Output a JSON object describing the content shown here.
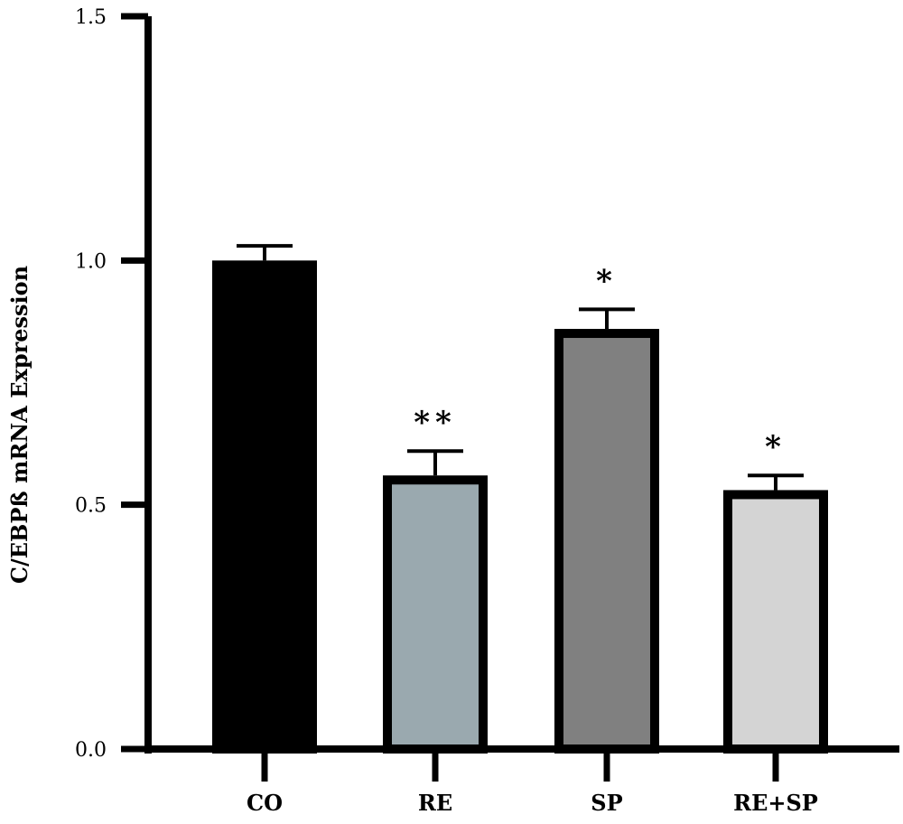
{
  "chart_data": {
    "type": "bar",
    "ylabel": "C/EBPß mRNA Expression",
    "ylim": [
      0,
      1.5
    ],
    "yticks": [
      "0.0",
      "0.5",
      "1.0",
      "1.5"
    ],
    "categories": [
      "CO",
      "RE",
      "SP",
      "RE+SP"
    ],
    "values": [
      1.0,
      0.56,
      0.86,
      0.53
    ],
    "errors": [
      0.03,
      0.05,
      0.04,
      0.03
    ],
    "significance": [
      "",
      "**",
      "*",
      "*"
    ],
    "colors": [
      "#000000",
      "#9aa9af",
      "#808080",
      "#d4d4d4"
    ],
    "grid": false,
    "legend": "none"
  }
}
